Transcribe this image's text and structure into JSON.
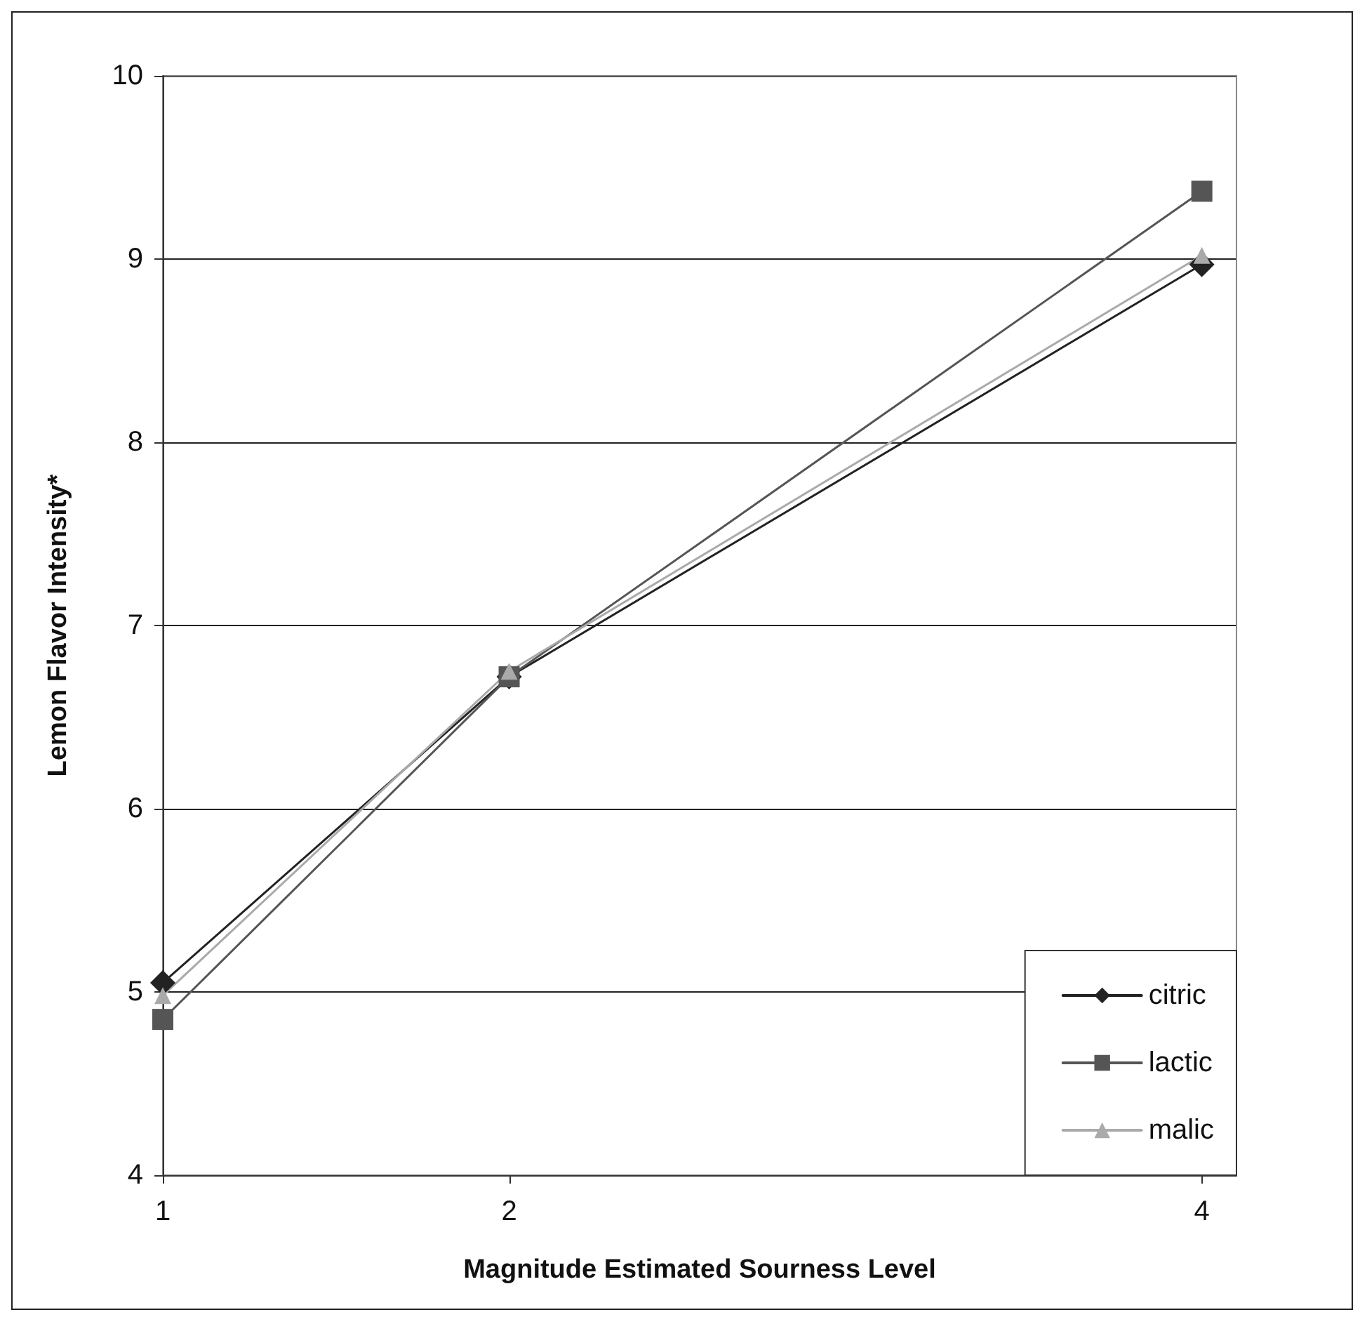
{
  "chart_data": {
    "type": "line",
    "xlabel": "Magnitude Estimated Sourness Level",
    "ylabel": "Lemon Flavor Intensity*",
    "x": [
      1,
      2,
      4
    ],
    "xlim": [
      1,
      4.1
    ],
    "xticks": [
      1,
      2,
      4
    ],
    "ylim": [
      4,
      10
    ],
    "yticks": [
      4,
      5,
      6,
      7,
      8,
      9,
      10
    ],
    "grid": "y",
    "legend": "bottom right",
    "series": [
      {
        "name": "citric",
        "color": "#222222",
        "marker": "diamond",
        "values": [
          5.05,
          6.72,
          8.97
        ]
      },
      {
        "name": "lactic",
        "color": "#555555",
        "marker": "square",
        "values": [
          4.85,
          6.72,
          9.37
        ]
      },
      {
        "name": "malic",
        "color": "#aaaaaa",
        "marker": "triangle",
        "values": [
          4.98,
          6.75,
          9.02
        ]
      }
    ]
  }
}
